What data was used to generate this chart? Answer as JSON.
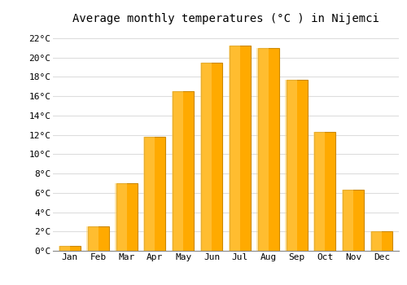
{
  "title": "Average monthly temperatures (°C ) in Nijemci",
  "months": [
    "Jan",
    "Feb",
    "Mar",
    "Apr",
    "May",
    "Jun",
    "Jul",
    "Aug",
    "Sep",
    "Oct",
    "Nov",
    "Dec"
  ],
  "values": [
    0.5,
    2.5,
    7.0,
    11.8,
    16.5,
    19.5,
    21.2,
    21.0,
    17.7,
    12.3,
    6.3,
    2.0
  ],
  "bar_color": "#FFAA00",
  "bar_edge_color": "#CC8800",
  "ylim": [
    0,
    23
  ],
  "yticks": [
    0,
    2,
    4,
    6,
    8,
    10,
    12,
    14,
    16,
    18,
    20,
    22
  ],
  "ytick_labels": [
    "0°C",
    "2°C",
    "4°C",
    "6°C",
    "8°C",
    "10°C",
    "12°C",
    "14°C",
    "16°C",
    "18°C",
    "20°C",
    "22°C"
  ],
  "background_color": "#ffffff",
  "grid_color": "#dddddd",
  "title_fontsize": 10,
  "tick_fontsize": 8,
  "bar_width": 0.75
}
